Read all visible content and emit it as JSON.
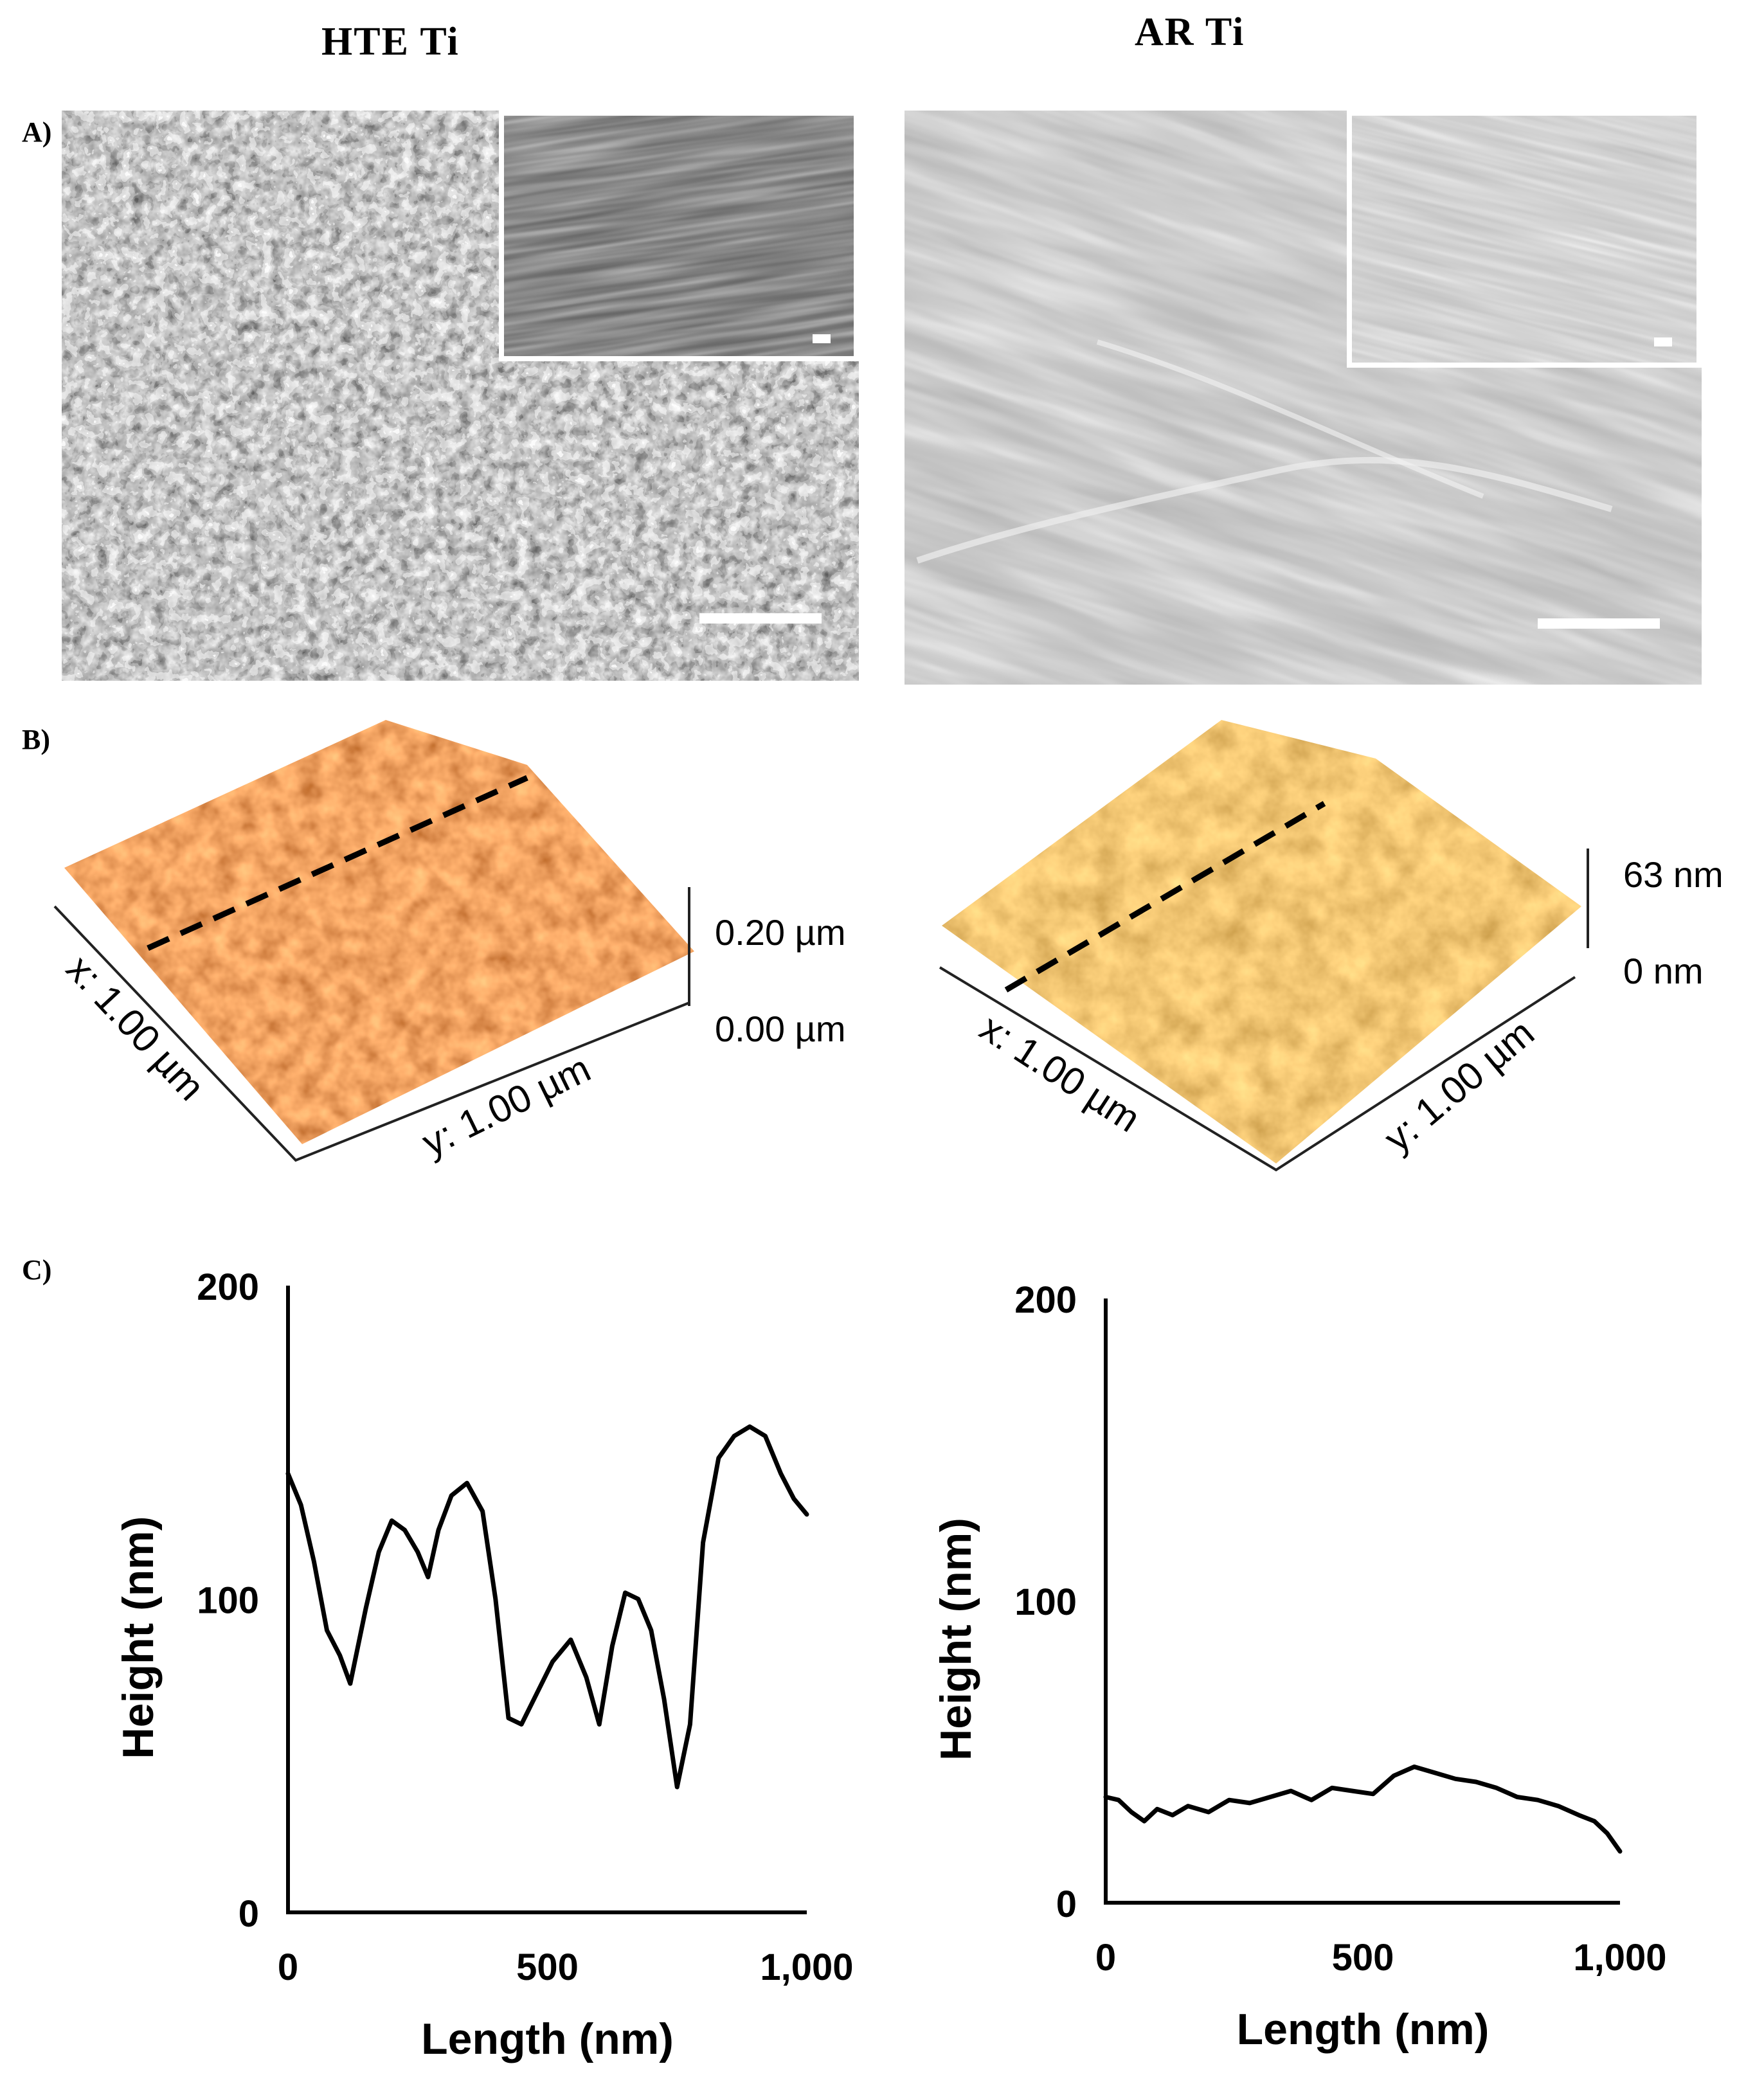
{
  "columns": {
    "left_title": "HTE Ti",
    "right_title": "AR Ti"
  },
  "panels": {
    "a": "A)",
    "b": "B)",
    "c": "C)"
  },
  "afm": {
    "hte": {
      "x_label": "x: 1.00 µm",
      "y_label": "y: 1.00 µm",
      "z_max": "0.20 µm",
      "z_min": "0.00 µm"
    },
    "ar": {
      "x_label": "x: 1.00 µm",
      "y_label": "y: 1.00 µm",
      "z_max": "63 nm",
      "z_min": "0 nm"
    }
  },
  "colors": {
    "afm_dark": "#7a2a08",
    "afm_mid": "#c9601a",
    "afm_light": "#f4b35a",
    "line": "#000000"
  },
  "chart_data": [
    {
      "type": "line",
      "xlabel": "Length (nm)",
      "ylabel": "Height (nm)",
      "xlim": [
        0,
        1000
      ],
      "ylim": [
        0,
        200
      ],
      "xticks": [
        "0",
        "500",
        "1,000"
      ],
      "yticks": [
        "0",
        "100",
        "200"
      ],
      "x": [
        0,
        25,
        50,
        75,
        100,
        120,
        150,
        175,
        200,
        225,
        250,
        270,
        290,
        315,
        345,
        375,
        400,
        425,
        450,
        480,
        510,
        545,
        575,
        600,
        625,
        650,
        675,
        700,
        725,
        750,
        775,
        800,
        830,
        860,
        890,
        920,
        950,
        975,
        1000
      ],
      "values": [
        140,
        130,
        112,
        90,
        82,
        73,
        97,
        115,
        125,
        122,
        115,
        107,
        122,
        133,
        137,
        128,
        100,
        62,
        60,
        70,
        80,
        87,
        75,
        60,
        85,
        102,
        100,
        90,
        68,
        40,
        60,
        118,
        145,
        152,
        155,
        152,
        140,
        132,
        127
      ]
    },
    {
      "type": "line",
      "xlabel": "Length (nm)",
      "ylabel": "Height (nm)",
      "xlim": [
        0,
        1000
      ],
      "ylim": [
        0,
        200
      ],
      "xticks": [
        "0",
        "500",
        "1,000"
      ],
      "yticks": [
        "0",
        "100",
        "200"
      ],
      "x": [
        0,
        25,
        50,
        75,
        100,
        130,
        160,
        200,
        240,
        280,
        320,
        360,
        400,
        440,
        480,
        520,
        560,
        600,
        640,
        680,
        720,
        760,
        800,
        840,
        880,
        920,
        950,
        975,
        1000
      ],
      "values": [
        35,
        34,
        30,
        27,
        31,
        29,
        32,
        30,
        34,
        33,
        35,
        37,
        34,
        38,
        37,
        36,
        42,
        45,
        43,
        41,
        40,
        38,
        35,
        34,
        32,
        29,
        27,
        23,
        17
      ]
    }
  ]
}
